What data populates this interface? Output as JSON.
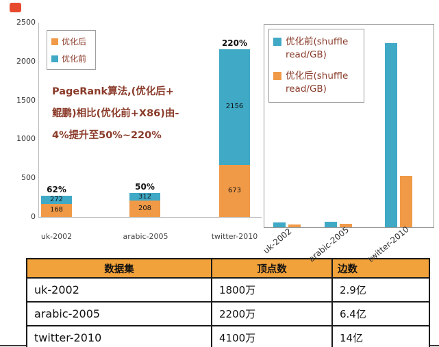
{
  "icons": {
    "top_left": "red-marker-icon"
  },
  "colors": {
    "before_blue": "#3fa9c6",
    "after_orange": "#f09a48",
    "annotation_text": "#8a3b2a",
    "table_header_bg": "#f2a23b"
  },
  "chart_data": [
    {
      "name": "pagerank-performance-chart",
      "type": "bar",
      "ylim": [
        0,
        2500
      ],
      "y_ticks": [
        0,
        500,
        1000,
        1500,
        2000,
        2500
      ],
      "grid": false,
      "legend_position": "upper-left",
      "categories": [
        "uk-2002",
        "arabic-2005",
        "twitter-2010"
      ],
      "series": [
        {
          "name": "优化前",
          "color": "#3fa9c6",
          "values": [
            272,
            312,
            2156
          ]
        },
        {
          "name": "优化后",
          "color": "#f09a48",
          "values": [
            168,
            208,
            673
          ]
        }
      ],
      "percent_labels": [
        "62%",
        "50%",
        "220%"
      ],
      "annotation": {
        "line1": "PageRank算法,(优化后+",
        "line2": "鲲鹏)相比(优化前+X86)由-",
        "line3": "4%提升至50%~220%"
      }
    },
    {
      "name": "shuffle-read-chart",
      "type": "bar",
      "grid": false,
      "legend_position": "upper-left",
      "categories": [
        "uk-2002",
        "arabic-2005",
        "twitter-2010"
      ],
      "series": [
        {
          "name": "优化前(shuffle read/GB)",
          "color": "#3fa9c6",
          "values": [
            60,
            70,
            2350
          ],
          "estimated": true
        },
        {
          "name": "优化后(shuffle read/GB)",
          "color": "#f09a48",
          "values": [
            35,
            45,
            660
          ],
          "estimated": true
        }
      ],
      "note": "bar values not labeled in image; heights estimated from pixels"
    }
  ],
  "table": {
    "headers": [
      "数据集",
      "顶点数",
      "边数"
    ],
    "rows": [
      {
        "dataset": "uk-2002",
        "vertices": "1800万",
        "edges": "2.9亿"
      },
      {
        "dataset": "arabic-2005",
        "vertices": "2200万",
        "edges": "6.4亿"
      },
      {
        "dataset": "twitter-2010",
        "vertices": "4100万",
        "edges": "14亿"
      }
    ]
  }
}
